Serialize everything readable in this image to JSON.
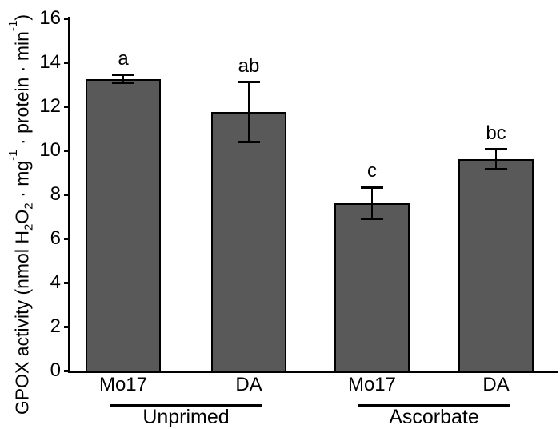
{
  "figure": {
    "background": "#ffffff"
  },
  "chart_data": {
    "type": "bar",
    "title": "",
    "xlabel": "",
    "ylabel": "GPOX activity (nmol H2O2 · mg-1 · protein · min-1)",
    "ylabel_parts": [
      {
        "text": "GPOX activity (nmol H"
      },
      {
        "text": "2",
        "style": "sub"
      },
      {
        "text": "O"
      },
      {
        "text": "2",
        "style": "sub"
      },
      {
        "text": " · mg"
      },
      {
        "text": "-1",
        "style": "sup"
      },
      {
        "text": " · protein · min"
      },
      {
        "text": "-1",
        "style": "sup"
      },
      {
        "text": ")"
      }
    ],
    "ylim": [
      0,
      16
    ],
    "yticks": [
      0,
      2,
      4,
      6,
      8,
      10,
      12,
      14,
      16
    ],
    "grid": false,
    "legend": "none",
    "bar_color": "#595959",
    "bar_border_color": "#000000",
    "axis_color": "#000000",
    "groups": [
      {
        "label": "Unprimed",
        "bars": [
          {
            "category": "Mo17",
            "value": 13.25,
            "error": 0.18,
            "sig": "a"
          },
          {
            "category": "DA",
            "value": 11.75,
            "error": 1.35,
            "sig": "ab"
          }
        ]
      },
      {
        "label": "Ascorbate",
        "bars": [
          {
            "category": "Mo17",
            "value": 7.6,
            "error": 0.72,
            "sig": "c"
          },
          {
            "category": "DA",
            "value": 9.6,
            "error": 0.45,
            "sig": "bc"
          }
        ]
      }
    ]
  }
}
